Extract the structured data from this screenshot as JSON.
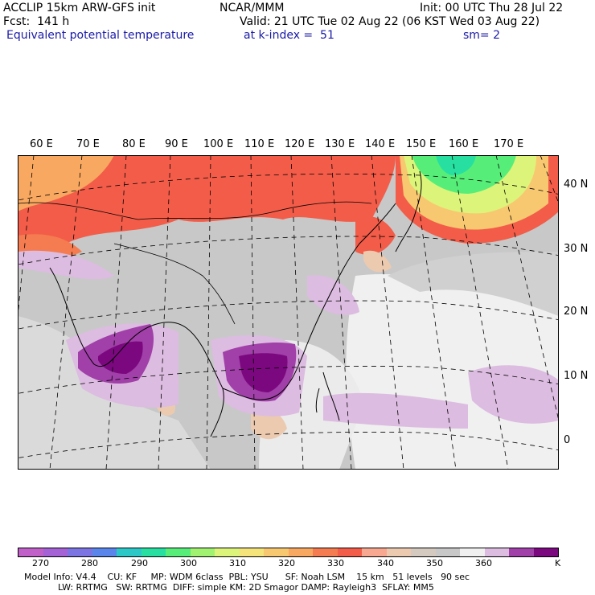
{
  "header": {
    "title": "ACCLIP 15km ARW-GFS init",
    "forecast": "Fcst:  141 h",
    "field_name": "Equivalent potential temperature",
    "center": "NCAR/MMM",
    "valid": "Valid: 21 UTC Tue 02 Aug 22 (06 KST Wed 03 Aug 22)",
    "level": "at k-index =  51",
    "init": "Init: 00 UTC Thu 28 Jul 22",
    "smoothing": "sm= 2"
  },
  "map": {
    "longitude_labels": [
      "60 E",
      "70 E",
      "80 E",
      "90 E",
      "100 E",
      "110 E",
      "120 E",
      "130 E",
      "140 E",
      "150 E",
      "160 E",
      "170 E"
    ],
    "latitude_labels": [
      "40 N",
      "30 N",
      "20 N",
      "10 N",
      "0"
    ]
  },
  "colorbar": {
    "colors": [
      "#c060c8",
      "#a462d6",
      "#7d74e4",
      "#5a86ec",
      "#2cc8c8",
      "#26dfa0",
      "#56ee78",
      "#a0f270",
      "#ddf47a",
      "#f4e47a",
      "#f8c870",
      "#f8a860",
      "#f47c50",
      "#f25c48",
      "#f8a890",
      "#eccab0",
      "#d4cac0",
      "#c8c8c8",
      "#f0f0f0",
      "#dcbce0",
      "#a040a8",
      "#7c0880"
    ],
    "tick_labels": [
      "270",
      "280",
      "290",
      "300",
      "310",
      "320",
      "330",
      "340",
      "350",
      "360"
    ],
    "unit": "K"
  },
  "footer": {
    "line1": "Model Info: V4.4    CU: KF     MP: WDM 6class  PBL: YSU      SF: Noah LSM    15 km   51 levels   90 sec",
    "line2": "LW: RRTMG   SW: RRTMG  DIFF: simple KM: 2D Smagor DAMP: Rayleigh3  SFLAY: MM5"
  }
}
